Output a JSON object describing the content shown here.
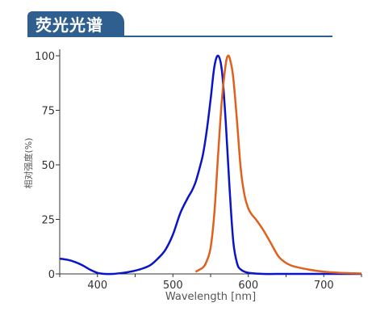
{
  "header": {
    "title": "荧光光谱"
  },
  "chart_data": {
    "type": "line",
    "title": "",
    "xlabel": "Wavelength [nm]",
    "ylabel": "相对强度(%)",
    "xlim": [
      350,
      750
    ],
    "ylim": [
      0,
      100
    ],
    "x_ticks": [
      400,
      500,
      600,
      700
    ],
    "y_ticks": [
      0,
      25,
      50,
      75,
      100
    ],
    "grid": false,
    "legend": "none",
    "series": [
      {
        "color": "#0a14c8",
        "x": [
          350,
          360,
          370,
          380,
          390,
          400,
          410,
          420,
          430,
          440,
          450,
          460,
          470,
          480,
          490,
          500,
          510,
          520,
          525,
          530,
          535,
          540,
          545,
          550,
          555,
          560,
          565,
          570,
          575,
          580,
          585,
          590,
          600,
          620,
          650,
          700,
          750
        ],
        "y": [
          7,
          6.5,
          5.5,
          4,
          2,
          0.5,
          0,
          0,
          0.3,
          0.8,
          1.5,
          2.5,
          4,
          7,
          11,
          18,
          28,
          35,
          38,
          42,
          48,
          55,
          66,
          80,
          95,
          100,
          93,
          70,
          40,
          15,
          5,
          2,
          0.5,
          0,
          0,
          0,
          0
        ]
      },
      {
        "color": "#e0601e",
        "x": [
          530,
          540,
          545,
          550,
          555,
          560,
          565,
          570,
          573,
          576,
          580,
          585,
          590,
          595,
          600,
          605,
          610,
          620,
          630,
          640,
          650,
          660,
          680,
          700,
          720,
          740,
          750
        ],
        "y": [
          1,
          3,
          6,
          12,
          28,
          55,
          80,
          96,
          100,
          98,
          90,
          70,
          48,
          36,
          30,
          27,
          25,
          20,
          14,
          8,
          5,
          3.5,
          2,
          1,
          0.5,
          0.3,
          0.2
        ]
      }
    ]
  }
}
